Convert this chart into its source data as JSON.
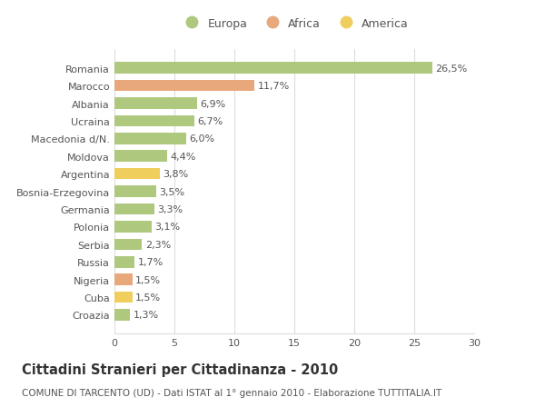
{
  "countries": [
    "Romania",
    "Marocco",
    "Albania",
    "Ucraina",
    "Macedonia d/N.",
    "Moldova",
    "Argentina",
    "Bosnia-Erzegovina",
    "Germania",
    "Polonia",
    "Serbia",
    "Russia",
    "Nigeria",
    "Cuba",
    "Croazia"
  ],
  "values": [
    26.5,
    11.7,
    6.9,
    6.7,
    6.0,
    4.4,
    3.8,
    3.5,
    3.3,
    3.1,
    2.3,
    1.7,
    1.5,
    1.5,
    1.3
  ],
  "labels": [
    "26,5%",
    "11,7%",
    "6,9%",
    "6,7%",
    "6,0%",
    "4,4%",
    "3,8%",
    "3,5%",
    "3,3%",
    "3,1%",
    "2,3%",
    "1,7%",
    "1,5%",
    "1,5%",
    "1,3%"
  ],
  "colors": [
    "#aec87e",
    "#e8a87c",
    "#aec87e",
    "#aec87e",
    "#aec87e",
    "#aec87e",
    "#f0ce5e",
    "#aec87e",
    "#aec87e",
    "#aec87e",
    "#aec87e",
    "#aec87e",
    "#e8a87c",
    "#f0ce5e",
    "#aec87e"
  ],
  "legend_labels": [
    "Europa",
    "Africa",
    "America"
  ],
  "legend_colors": [
    "#aec87e",
    "#e8a87c",
    "#f0ce5e"
  ],
  "title": "Cittadini Stranieri per Cittadinanza - 2010",
  "subtitle": "COMUNE DI TARCENTO (UD) - Dati ISTAT al 1° gennaio 2010 - Elaborazione TUTTITALIA.IT",
  "xlim": [
    0,
    30
  ],
  "xticks": [
    0,
    5,
    10,
    15,
    20,
    25,
    30
  ],
  "bg_color": "#ffffff",
  "grid_color": "#dddddd",
  "bar_height": 0.65,
  "label_fontsize": 8,
  "tick_fontsize": 8,
  "title_fontsize": 10.5,
  "subtitle_fontsize": 7.5,
  "text_color": "#555555",
  "title_color": "#333333"
}
